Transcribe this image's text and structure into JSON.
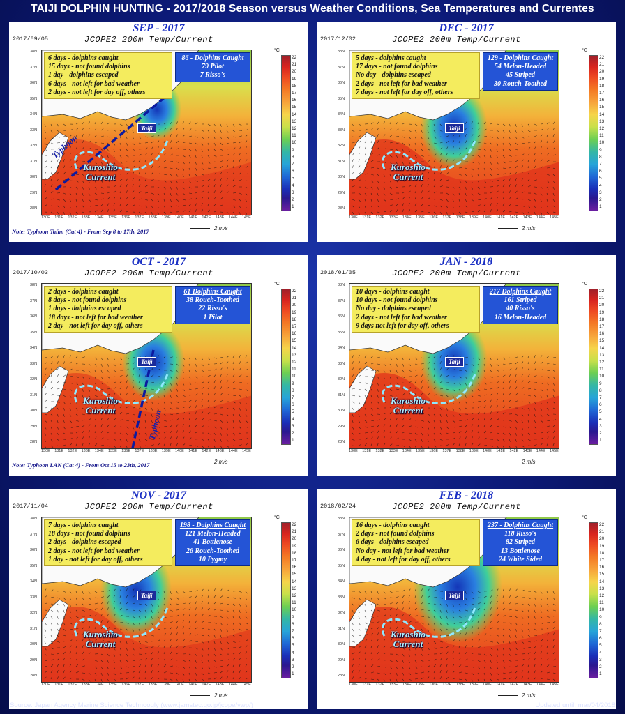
{
  "title": "TAIJI DOLPHIN HUNTING - 2017/2018 Season versus Weather Conditions, Sea Temperatures and Currentes",
  "map_subtitle": "JCOPE2    200m Temp/Current",
  "colorbar": {
    "unit": "°C",
    "ticks": [
      "22",
      "21",
      "20",
      "19",
      "18",
      "17",
      "16",
      "15",
      "14",
      "13",
      "12",
      "11",
      "10",
      "9",
      "8",
      "7",
      "6",
      "5",
      "4",
      "3",
      "2",
      "1"
    ]
  },
  "scale_label": "2   m/s",
  "taiji_label": "Taiji",
  "kuroshio_label": "Kuroshio\nCurrent",
  "lat_ticks": [
    "38N",
    "37N",
    "36N",
    "35N",
    "34N",
    "33N",
    "32N",
    "31N",
    "30N",
    "29N",
    "28N"
  ],
  "lon_ticks": [
    "130E",
    "131E",
    "132E",
    "133E",
    "134E",
    "135E",
    "136E",
    "137E",
    "138E",
    "139E",
    "140E",
    "141E",
    "142E",
    "143E",
    "144E",
    "145E"
  ],
  "panels": [
    {
      "title": "SEP - 2017",
      "date": "2017/09/05",
      "stats": [
        "6 days - dolphins caught",
        "15 days - not found dolphins",
        "1 day - dolphins escaped",
        "6 days - not left for bad weather",
        "2 days - not left for day off, others"
      ],
      "caught": {
        "head": "86 - Dolphins Caught",
        "lines": [
          "79 Pilot",
          "7 Risso's"
        ]
      },
      "typhoon": "Typhoon",
      "note": "Note: Typhoon Talim (Cat 4) - From Sep 8 to 17th, 2017"
    },
    {
      "title": "DEC - 2017",
      "date": "2017/12/02",
      "stats": [
        "5 days - dolphins caught",
        "17 days - not found dolphins",
        "No day - dolphins escaped",
        "2 days - not left for bad weather",
        "7 days - not left for day off, others"
      ],
      "caught": {
        "head": "129 - Dolphins Caught",
        "lines": [
          "54 Melon-Headed",
          "45 Striped",
          "30 Rouch-Toothed"
        ]
      }
    },
    {
      "title": "OCT - 2017",
      "date": "2017/10/03",
      "stats": [
        "2 days - dolphins caught",
        "8 days - not found dolphins",
        "1 days - dolphins escaped",
        "18 days - not left for bad weather",
        "2 day - not left for day off, others"
      ],
      "caught": {
        "head": "61 Dolphins Caught",
        "lines": [
          "38 Rouch-Toothed",
          "22 Risso's",
          "1 Pilot"
        ]
      },
      "typhoon": "Typhoon",
      "note": "Note: Typhoon LAN (Cat 4) - From Oct 15 to 23th, 2017"
    },
    {
      "title": "JAN - 2018",
      "date": "2018/01/05",
      "stats": [
        "10 days - dolphins caught",
        "10 days - not found dolphins",
        "No day - dolphins escaped",
        "2 days - not left for bad weather",
        "9 days not left for day off, others"
      ],
      "caught": {
        "head": "217 Dolphins Caught",
        "lines": [
          "161 Striped",
          "40 Risso's",
          "16 Melon-Headed"
        ]
      }
    },
    {
      "title": "NOV - 2017",
      "date": "2017/11/04",
      "stats": [
        "7 days - dolphins caught",
        "18 days - not found dolphins",
        "2 days - dolphins escaped",
        "2 days - not left for bad weather",
        "1 day - not left for day off, others"
      ],
      "caught": {
        "head": "198 - Dolphins Caught",
        "lines": [
          "121 Melon-Headed",
          "41 Bottlenose",
          "26 Rouch-Toothed",
          "10 Pygmy"
        ]
      }
    },
    {
      "title": "FEB - 2018",
      "date": "2018/02/24",
      "stats": [
        "16 days - dolphins caught",
        "2 days - not found dolphins",
        "6 days - dolphins escaped",
        "No day - not left for bad weather",
        "4 day - not left for day off, others"
      ],
      "caught": {
        "head": "237 - Dolphins Caught",
        "lines": [
          "118 Risso's",
          "82 Striped",
          "13 Bottlenose",
          "24 White Sided"
        ]
      }
    }
  ],
  "footer": {
    "source": "Source: Japan Agency Marine Science Technoogly  (www.jamstec.go.jp/jcope/vwp/)",
    "updated": "Updated until:  mar/04/2018"
  }
}
